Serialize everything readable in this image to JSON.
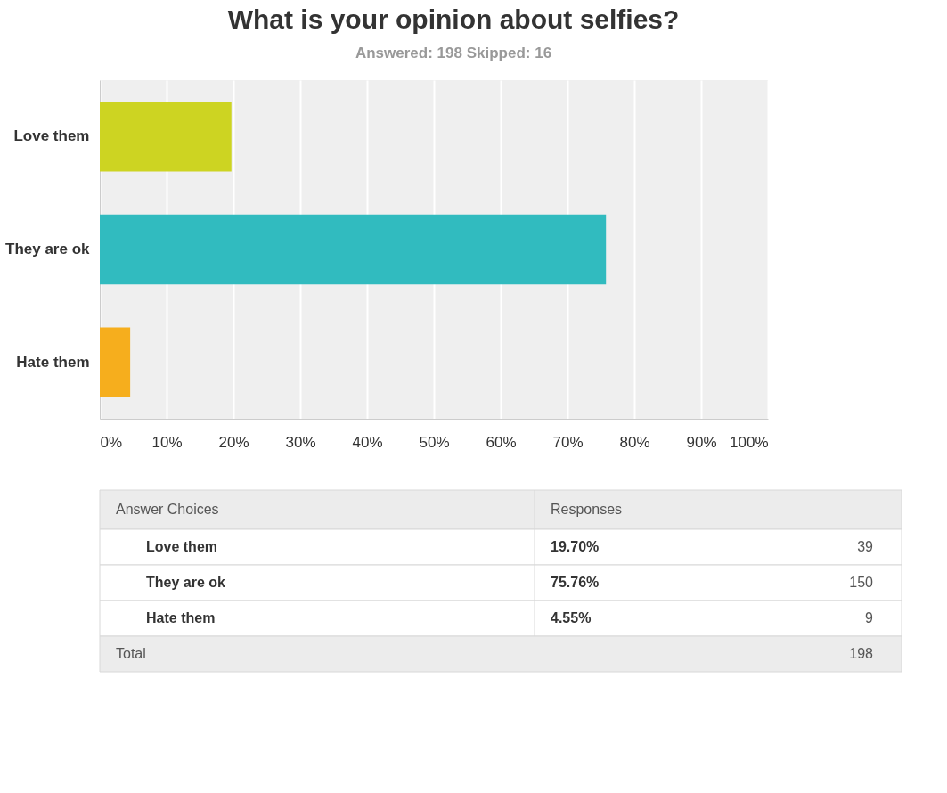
{
  "chart_data": {
    "type": "bar",
    "orientation": "horizontal",
    "title": "What is your opinion about selfies?",
    "subtitle": "Answered: 198    Skipped: 16",
    "categories": [
      "Love them",
      "They are ok",
      "Hate them"
    ],
    "values": [
      19.7,
      75.76,
      4.55
    ],
    "colors": [
      "#cdd422",
      "#31bbbf",
      "#f6ae1d"
    ],
    "xlim": [
      0,
      100
    ],
    "xticks": [
      {
        "value": 0,
        "label": "0%"
      },
      {
        "value": 10,
        "label": "10%"
      },
      {
        "value": 20,
        "label": "20%"
      },
      {
        "value": 30,
        "label": "30%"
      },
      {
        "value": 40,
        "label": "40%"
      },
      {
        "value": 50,
        "label": "50%"
      },
      {
        "value": 60,
        "label": "60%"
      },
      {
        "value": 70,
        "label": "70%"
      },
      {
        "value": 80,
        "label": "80%"
      },
      {
        "value": 90,
        "label": "90%"
      },
      {
        "value": 100,
        "label": "100%"
      }
    ],
    "grid": "x",
    "annotations": [
      "Answer Choices",
      "Responses",
      "19.70%",
      "75.76%",
      "4.55%",
      "39",
      "150",
      "9",
      "Total",
      "198"
    ]
  }
}
